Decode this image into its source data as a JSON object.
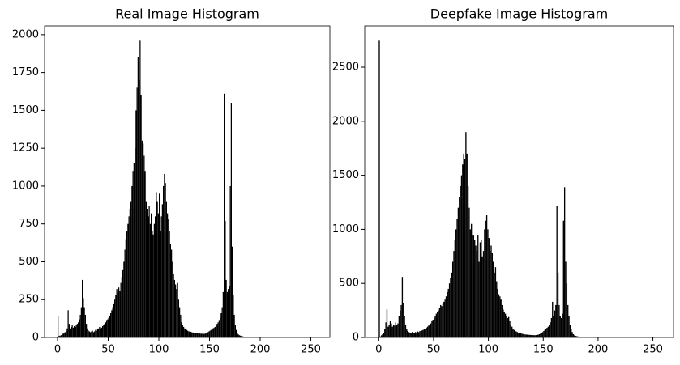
{
  "chart_data": [
    {
      "type": "histogram",
      "title": "Real Image Histogram",
      "color": "#000000",
      "bins": [
        0,
        1,
        2,
        3,
        4,
        5,
        6,
        7,
        8,
        9,
        10,
        11,
        12,
        13,
        14,
        15,
        16,
        17,
        18,
        19,
        20,
        21,
        22,
        23,
        24,
        25,
        26,
        27,
        28,
        29,
        30,
        31,
        32,
        33,
        34,
        35,
        36,
        37,
        38,
        39,
        40,
        41,
        42,
        43,
        44,
        45,
        46,
        47,
        48,
        49,
        50,
        51,
        52,
        53,
        54,
        55,
        56,
        57,
        58,
        59,
        60,
        61,
        62,
        63,
        64,
        65,
        66,
        67,
        68,
        69,
        70,
        71,
        72,
        73,
        74,
        75,
        76,
        77,
        78,
        79,
        80,
        81,
        82,
        83,
        84,
        85,
        86,
        87,
        88,
        89,
        90,
        91,
        92,
        93,
        94,
        95,
        96,
        97,
        98,
        99,
        100,
        101,
        102,
        103,
        104,
        105,
        106,
        107,
        108,
        109,
        110,
        111,
        112,
        113,
        114,
        115,
        116,
        117,
        118,
        119,
        120,
        121,
        122,
        123,
        124,
        125,
        126,
        127,
        128,
        129,
        130,
        131,
        132,
        133,
        134,
        135,
        136,
        137,
        138,
        139,
        140,
        141,
        142,
        143,
        144,
        145,
        146,
        147,
        148,
        149,
        150,
        151,
        152,
        153,
        154,
        155,
        156,
        157,
        158,
        159,
        160,
        161,
        162,
        163,
        164,
        165,
        166,
        167,
        168,
        169,
        170,
        171,
        172,
        173,
        174,
        175,
        176,
        177,
        178,
        179,
        180,
        181,
        182,
        183,
        184,
        185,
        186,
        187,
        188,
        189,
        190,
        191,
        192,
        193,
        194,
        195,
        196,
        197,
        198,
        199,
        200,
        201,
        202,
        203,
        204,
        205,
        206,
        207,
        208,
        209,
        210,
        211,
        212,
        213,
        214,
        215,
        216,
        217,
        218,
        219,
        220,
        221,
        222,
        223,
        224,
        225,
        226,
        227,
        228,
        229,
        230,
        231,
        232,
        233,
        234,
        235,
        236,
        237,
        238,
        239,
        240,
        241,
        242,
        243,
        244,
        245,
        246,
        247,
        248,
        249,
        250,
        251,
        252,
        253,
        254,
        255,
        256
      ],
      "values": [
        140,
        10,
        12,
        15,
        20,
        25,
        30,
        35,
        40,
        60,
        180,
        90,
        60,
        70,
        80,
        65,
        75,
        70,
        80,
        90,
        100,
        120,
        150,
        200,
        380,
        260,
        200,
        150,
        90,
        60,
        45,
        40,
        35,
        40,
        45,
        35,
        40,
        50,
        45,
        55,
        60,
        70,
        60,
        65,
        75,
        80,
        90,
        100,
        110,
        120,
        130,
        140,
        160,
        180,
        200,
        220,
        250,
        280,
        320,
        300,
        330,
        310,
        360,
        400,
        450,
        500,
        580,
        650,
        700,
        750,
        800,
        850,
        900,
        1000,
        1100,
        1150,
        1250,
        1500,
        1650,
        1850,
        1700,
        1960,
        1600,
        1300,
        1280,
        1200,
        1100,
        900,
        850,
        800,
        870,
        750,
        820,
        700,
        680,
        750,
        800,
        960,
        900,
        820,
        950,
        700,
        800,
        880,
        1000,
        1080,
        1020,
        900,
        820,
        780,
        700,
        620,
        580,
        500,
        420,
        380,
        350,
        320,
        360,
        250,
        200,
        150,
        100,
        80,
        70,
        60,
        55,
        50,
        45,
        40,
        40,
        38,
        35,
        33,
        32,
        30,
        30,
        28,
        28,
        27,
        26,
        25,
        25,
        24,
        24,
        25,
        28,
        30,
        35,
        40,
        45,
        50,
        55,
        60,
        65,
        70,
        80,
        90,
        100,
        110,
        130,
        160,
        200,
        300,
        1610,
        770,
        380,
        300,
        320,
        340,
        1000,
        1550,
        600,
        280,
        150,
        80,
        50,
        30,
        20,
        15,
        12,
        10,
        8,
        6,
        5,
        4,
        3,
        3,
        2,
        2,
        2,
        1,
        1,
        1,
        1,
        1,
        0,
        0,
        0,
        0,
        0,
        0,
        0,
        0,
        0,
        0,
        0,
        0,
        0,
        0,
        0,
        0,
        0,
        0,
        0,
        0,
        0,
        0,
        0,
        0,
        0,
        0,
        0,
        0,
        0,
        0,
        0,
        0,
        0,
        0,
        0,
        0,
        0,
        0,
        0,
        0,
        0,
        0,
        0,
        0,
        0,
        0,
        0,
        0,
        0,
        0,
        0,
        0,
        0,
        0,
        0,
        0,
        0,
        0,
        0,
        0
      ],
      "xlim": [
        -12.8,
        268.8
      ],
      "xticks": [
        0,
        50,
        100,
        150,
        200,
        250
      ],
      "ylim": [
        0,
        2058
      ],
      "yticks": [
        0,
        250,
        500,
        750,
        1000,
        1250,
        1500,
        1750,
        2000
      ]
    },
    {
      "type": "histogram",
      "title": "Deepfake Image Histogram",
      "color": "#000000",
      "bins": [
        0,
        1,
        2,
        3,
        4,
        5,
        6,
        7,
        8,
        9,
        10,
        11,
        12,
        13,
        14,
        15,
        16,
        17,
        18,
        19,
        20,
        21,
        22,
        23,
        24,
        25,
        26,
        27,
        28,
        29,
        30,
        31,
        32,
        33,
        34,
        35,
        36,
        37,
        38,
        39,
        40,
        41,
        42,
        43,
        44,
        45,
        46,
        47,
        48,
        49,
        50,
        51,
        52,
        53,
        54,
        55,
        56,
        57,
        58,
        59,
        60,
        61,
        62,
        63,
        64,
        65,
        66,
        67,
        68,
        69,
        70,
        71,
        72,
        73,
        74,
        75,
        76,
        77,
        78,
        79,
        80,
        81,
        82,
        83,
        84,
        85,
        86,
        87,
        88,
        89,
        90,
        91,
        92,
        93,
        94,
        95,
        96,
        97,
        98,
        99,
        100,
        101,
        102,
        103,
        104,
        105,
        106,
        107,
        108,
        109,
        110,
        111,
        112,
        113,
        114,
        115,
        116,
        117,
        118,
        119,
        120,
        121,
        122,
        123,
        124,
        125,
        126,
        127,
        128,
        129,
        130,
        131,
        132,
        133,
        134,
        135,
        136,
        137,
        138,
        139,
        140,
        141,
        142,
        143,
        144,
        145,
        146,
        147,
        148,
        149,
        150,
        151,
        152,
        153,
        154,
        155,
        156,
        157,
        158,
        159,
        160,
        161,
        162,
        163,
        164,
        165,
        166,
        167,
        168,
        169,
        170,
        171,
        172,
        173,
        174,
        175,
        176,
        177,
        178,
        179,
        180,
        181,
        182,
        183,
        184,
        185,
        186,
        187,
        188,
        189,
        190,
        191,
        192,
        193,
        194,
        195,
        196,
        197,
        198,
        199,
        200,
        201,
        202,
        203,
        204,
        205,
        206,
        207,
        208,
        209,
        210,
        211,
        212,
        213,
        214,
        215,
        216,
        217,
        218,
        219,
        220,
        221,
        222,
        223,
        224,
        225,
        226,
        227,
        228,
        229,
        230,
        231,
        232,
        233,
        234,
        235,
        236,
        237,
        238,
        239,
        240,
        241,
        242,
        243,
        244,
        245,
        246,
        247,
        248,
        249,
        250,
        251,
        252,
        253,
        254,
        255,
        256
      ],
      "values": [
        2745,
        10,
        20,
        30,
        40,
        80,
        140,
        260,
        100,
        120,
        150,
        130,
        100,
        120,
        110,
        140,
        120,
        130,
        200,
        250,
        300,
        560,
        320,
        200,
        120,
        80,
        60,
        50,
        45,
        40,
        50,
        45,
        40,
        50,
        45,
        55,
        50,
        60,
        55,
        65,
        70,
        75,
        80,
        90,
        100,
        110,
        120,
        130,
        150,
        160,
        180,
        200,
        220,
        240,
        250,
        270,
        300,
        290,
        310,
        330,
        350,
        380,
        420,
        450,
        500,
        550,
        600,
        700,
        800,
        900,
        1000,
        1100,
        1200,
        1300,
        1400,
        1500,
        1600,
        1700,
        1650,
        1900,
        1700,
        1400,
        1200,
        1000,
        1050,
        950,
        950,
        900,
        850,
        800,
        950,
        700,
        880,
        900,
        750,
        800,
        1000,
        1080,
        1130,
        1000,
        920,
        800,
        850,
        780,
        700,
        600,
        650,
        520,
        450,
        400,
        380,
        350,
        300,
        260,
        240,
        220,
        200,
        180,
        190,
        150,
        120,
        100,
        80,
        70,
        60,
        55,
        50,
        45,
        40,
        38,
        35,
        32,
        30,
        28,
        27,
        26,
        25,
        24,
        23,
        22,
        22,
        21,
        21,
        22,
        24,
        26,
        30,
        35,
        40,
        50,
        60,
        70,
        80,
        90,
        100,
        120,
        140,
        180,
        330,
        200,
        250,
        300,
        1220,
        600,
        300,
        200,
        180,
        220,
        1080,
        1390,
        700,
        500,
        300,
        200,
        120,
        80,
        50,
        30,
        20,
        15,
        12,
        10,
        8,
        6,
        5,
        4,
        3,
        3,
        2,
        2,
        2,
        1,
        1,
        1,
        1,
        1,
        0,
        0,
        0,
        0,
        0,
        0,
        0,
        0,
        0,
        0,
        0,
        0,
        0,
        0,
        0,
        0,
        0,
        0,
        0,
        0,
        0,
        0,
        0,
        0,
        0,
        0,
        0,
        0,
        0,
        0,
        0,
        0,
        0,
        0,
        0,
        0,
        0,
        0,
        0,
        0,
        0,
        0,
        0,
        0,
        0,
        0,
        0,
        0,
        0,
        0,
        0,
        0,
        0,
        0,
        0,
        0,
        0,
        0,
        0,
        0
      ],
      "xlim": [
        -12.8,
        268.8
      ],
      "xticks": [
        0,
        50,
        100,
        150,
        200,
        250
      ],
      "ylim": [
        0,
        2882
      ],
      "yticks": [
        0,
        500,
        1000,
        1500,
        2000,
        2500
      ]
    }
  ]
}
